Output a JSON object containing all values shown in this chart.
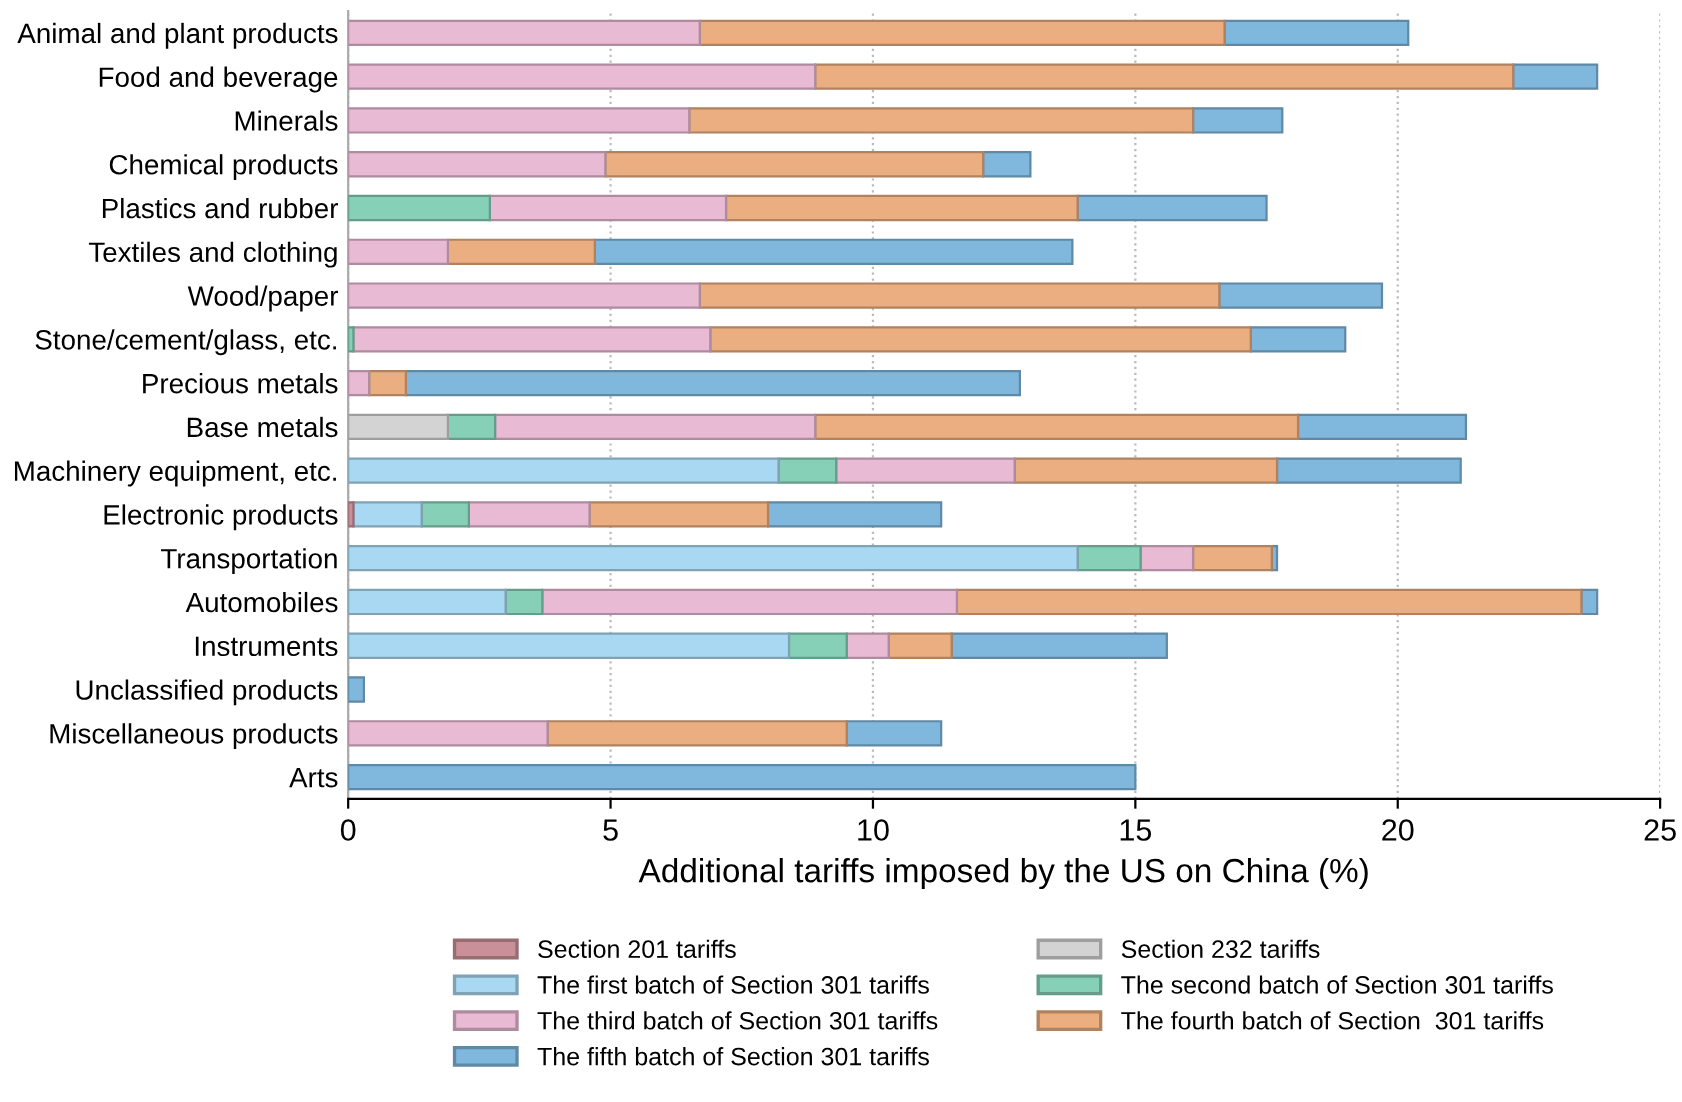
{
  "chart_data": {
    "type": "bar",
    "orientation": "horizontal",
    "stacked": true,
    "xlabel": "Additional tariffs imposed by the US on China (%)",
    "categories": [
      "Animal and plant products",
      "Food and beverage",
      "Minerals",
      "Chemical products",
      "Plastics and rubber",
      "Textiles and clothing",
      "Wood/paper",
      "Stone/cement/glass, etc.",
      "Precious metals",
      "Base metals",
      "Machinery equipment, etc.",
      "Electronic products",
      "Transportation",
      "Automobiles",
      "Instruments",
      "Unclassified products",
      "Miscellaneous products",
      "Arts"
    ],
    "series": [
      {
        "name": "Section 201 tariffs",
        "color": "#c9909a",
        "values": [
          null,
          null,
          null,
          null,
          null,
          null,
          null,
          null,
          null,
          null,
          null,
          0.1,
          null,
          null,
          null,
          null,
          null,
          null
        ]
      },
      {
        "name": "Section 232 tariffs",
        "color": "#d3d3d3",
        "values": [
          null,
          null,
          null,
          null,
          null,
          null,
          null,
          null,
          null,
          1.9,
          null,
          null,
          null,
          null,
          null,
          null,
          null,
          null
        ]
      },
      {
        "name": "The first batch of Section 301 tariffs",
        "color": "#a9d8f2",
        "values": [
          null,
          null,
          null,
          null,
          null,
          null,
          null,
          null,
          null,
          null,
          8.2,
          1.3,
          13.9,
          3.0,
          8.4,
          null,
          null,
          null
        ]
      },
      {
        "name": "The second batch of Section 301 tariffs",
        "color": "#86d0b8",
        "values": [
          null,
          null,
          null,
          null,
          2.7,
          null,
          null,
          0.1,
          null,
          0.9,
          1.1,
          0.9,
          1.2,
          0.7,
          1.1,
          null,
          null,
          null
        ]
      },
      {
        "name": "The third batch of Section 301 tariffs",
        "color": "#e8bad3",
        "values": [
          6.7,
          8.9,
          6.5,
          4.9,
          4.5,
          1.9,
          6.7,
          6.8,
          0.4,
          6.1,
          3.4,
          2.3,
          1.0,
          7.9,
          0.8,
          null,
          3.8,
          null
        ]
      },
      {
        "name": "The fourth batch of Section  301 tariffs",
        "color": "#eaae80",
        "values": [
          10.0,
          13.3,
          9.6,
          7.2,
          6.7,
          2.8,
          9.9,
          10.3,
          0.7,
          9.2,
          5.0,
          3.4,
          1.5,
          11.9,
          1.2,
          null,
          5.7,
          null
        ]
      },
      {
        "name": "The fifth batch of Section 301 tariffs",
        "color": "#80b7dc",
        "values": [
          3.5,
          1.6,
          1.7,
          0.9,
          3.6,
          9.1,
          3.1,
          1.8,
          11.7,
          3.2,
          3.5,
          3.3,
          0.1,
          0.3,
          4.1,
          0.3,
          1.8,
          15.0
        ]
      }
    ],
    "xlim": [
      0,
      25
    ],
    "xticks": [
      0,
      5,
      10,
      15,
      20,
      25
    ],
    "grid": "x",
    "legend": "bottom"
  }
}
